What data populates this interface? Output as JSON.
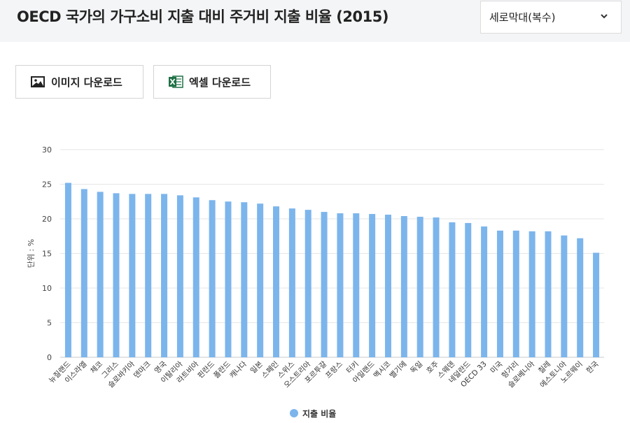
{
  "header": {
    "title": "OECD 국가의 가구소비 지출 대비 주거비 지출 비율 (2015)"
  },
  "chart_type_select": {
    "value": "세로막대(복수)"
  },
  "toolbar": {
    "image_download": "이미지 다운로드",
    "excel_download": "엑셀 다운로드"
  },
  "icons": {
    "image": "image-icon",
    "excel": "excel-icon",
    "dropdown": "chevron-down-icon"
  },
  "colors": {
    "bar": "#7cb5ec",
    "excel_green": "#1e7145"
  },
  "chart_data": {
    "type": "bar",
    "title": "",
    "ylabel": "단위 : %",
    "ylim": [
      0,
      30
    ],
    "yticks": [
      0,
      5,
      10,
      15,
      20,
      25,
      30
    ],
    "grid": true,
    "legend_position": "bottom-center",
    "categories": [
      "뉴질랜드",
      "이스라엘",
      "체코",
      "그리스",
      "슬로바키아",
      "덴마크",
      "영국",
      "이탈리아",
      "라트비아",
      "핀란드",
      "폴란드",
      "캐나다",
      "일본",
      "스페인",
      "스위스",
      "오스트리아",
      "포르투갈",
      "프랑스",
      "터키",
      "아일랜드",
      "멕시코",
      "벨기에",
      "독일",
      "호주",
      "스웨덴",
      "네덜란드",
      "OECD 33",
      "미국",
      "헝가리",
      "슬로베니아",
      "칠레",
      "에스토니아",
      "노르웨이",
      "한국"
    ],
    "series": [
      {
        "name": "지출 비율",
        "values": [
          25.2,
          24.3,
          23.9,
          23.7,
          23.6,
          23.6,
          23.6,
          23.4,
          23.1,
          22.7,
          22.5,
          22.4,
          22.2,
          21.8,
          21.5,
          21.3,
          21.0,
          20.8,
          20.8,
          20.7,
          20.6,
          20.4,
          20.3,
          20.2,
          19.5,
          19.4,
          18.9,
          18.3,
          18.3,
          18.2,
          18.2,
          17.6,
          17.2,
          15.1
        ]
      }
    ]
  }
}
